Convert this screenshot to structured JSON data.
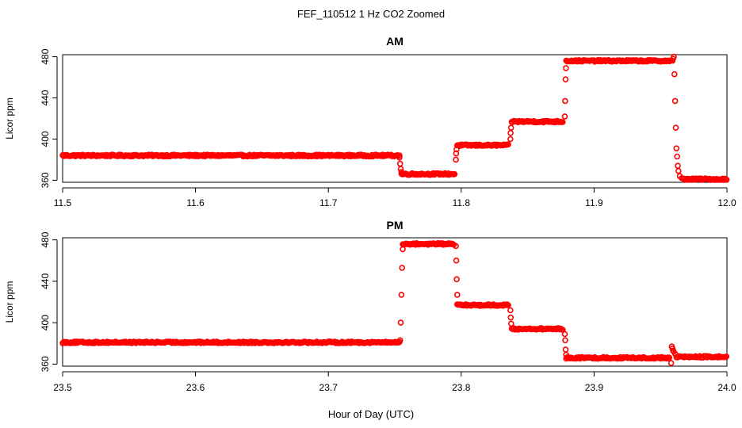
{
  "figure_title": "FEF_110512  1 Hz CO2 Zoomed",
  "xlabel": "Hour of Day (UTC)",
  "point_color": "#ff0000",
  "chart_data": [
    {
      "type": "scatter",
      "title": "AM",
      "xlabel": "",
      "ylabel": "Licor ppm",
      "xlim": [
        11.5,
        12.0
      ],
      "ylim": [
        358,
        482
      ],
      "xticks": [
        "11.5",
        "11.6",
        "11.7",
        "11.8",
        "11.9",
        "12.0"
      ],
      "yticks": [
        "360",
        "400",
        "440",
        "480"
      ],
      "segments": [
        {
          "x0": 11.5,
          "x1": 11.754,
          "y": 384
        },
        {
          "x0": 11.755,
          "x1": 11.795,
          "y": 366
        },
        {
          "x0": 11.797,
          "x1": 11.836,
          "y": 394
        },
        {
          "x0": 11.838,
          "x1": 11.877,
          "y": 417
        },
        {
          "x0": 11.879,
          "x1": 11.959,
          "y": 476
        },
        {
          "x0": 11.967,
          "x1": 12.0,
          "y": 361
        }
      ],
      "points": [
        [
          11.7535,
          382
        ],
        [
          11.754,
          376
        ],
        [
          11.7545,
          371
        ],
        [
          11.755,
          368
        ],
        [
          11.796,
          380
        ],
        [
          11.7962,
          386
        ],
        [
          11.7965,
          390
        ],
        [
          11.837,
          400
        ],
        [
          11.8372,
          406
        ],
        [
          11.8375,
          411
        ],
        [
          11.878,
          422
        ],
        [
          11.8782,
          437
        ],
        [
          11.8785,
          458
        ],
        [
          11.8788,
          469
        ],
        [
          11.9595,
          478
        ],
        [
          11.96,
          480
        ],
        [
          11.9605,
          463
        ],
        [
          11.961,
          437
        ],
        [
          11.9615,
          411
        ],
        [
          11.962,
          391
        ],
        [
          11.9625,
          383
        ],
        [
          11.963,
          374
        ],
        [
          11.9635,
          369
        ],
        [
          11.9645,
          364
        ],
        [
          11.966,
          362
        ]
      ]
    },
    {
      "type": "scatter",
      "title": "PM",
      "xlabel": "",
      "ylabel": "Licor ppm",
      "xlim": [
        23.5,
        24.0
      ],
      "ylim": [
        358,
        482
      ],
      "xticks": [
        "23.5",
        "23.6",
        "23.7",
        "23.8",
        "23.9",
        "24.0"
      ],
      "yticks": [
        "360",
        "400",
        "440",
        "480"
      ],
      "segments": [
        {
          "x0": 23.5,
          "x1": 23.754,
          "y": 381
        },
        {
          "x0": 23.756,
          "x1": 23.795,
          "y": 476
        },
        {
          "x0": 23.797,
          "x1": 23.836,
          "y": 417
        },
        {
          "x0": 23.838,
          "x1": 23.877,
          "y": 394
        },
        {
          "x0": 23.879,
          "x1": 23.957,
          "y": 366
        },
        {
          "x0": 23.962,
          "x1": 24.0,
          "y": 367
        }
      ],
      "points": [
        [
          23.754,
          383
        ],
        [
          23.7545,
          400
        ],
        [
          23.755,
          427
        ],
        [
          23.7555,
          453
        ],
        [
          23.756,
          471
        ],
        [
          23.796,
          474
        ],
        [
          23.7963,
          460
        ],
        [
          23.7966,
          442
        ],
        [
          23.797,
          427
        ],
        [
          23.837,
          412
        ],
        [
          23.8373,
          405
        ],
        [
          23.8376,
          399
        ],
        [
          23.878,
          389
        ],
        [
          23.8783,
          383
        ],
        [
          23.8786,
          374
        ],
        [
          23.879,
          369
        ],
        [
          23.958,
          361
        ],
        [
          23.9585,
          377
        ],
        [
          23.959,
          375
        ],
        [
          23.9595,
          373
        ],
        [
          23.96,
          372
        ],
        [
          23.961,
          370
        ]
      ]
    }
  ]
}
